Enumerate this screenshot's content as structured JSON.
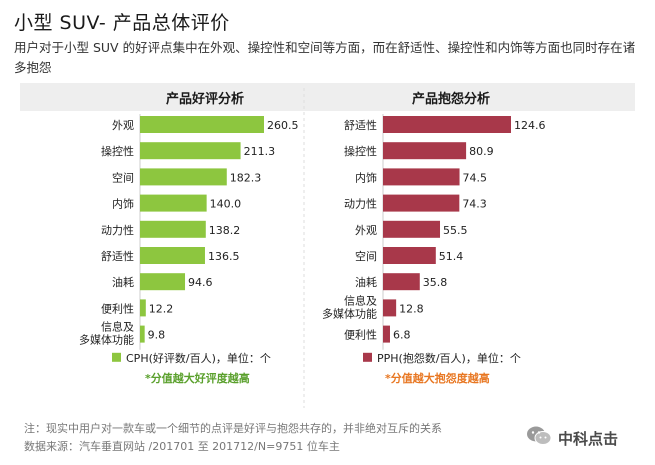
{
  "header": {
    "title": "小型 SUV- 产品总体评价",
    "subtitle": "用户对于小型 SUV 的好评点集中在外观、操控性和空间等方面，而在舒适性、操控性和内饰等方面也同时存在诸多抱怨"
  },
  "chart_data": [
    {
      "type": "bar",
      "orientation": "horizontal",
      "title": "产品好评分析",
      "categories": [
        "外观",
        "操控性",
        "空间",
        "内饰",
        "动力性",
        "舒适性",
        "油耗",
        "便利性",
        "信息及\n多媒体功能"
      ],
      "values": [
        260.5,
        211.3,
        182.3,
        140.0,
        138.2,
        136.5,
        94.6,
        12.2,
        9.8
      ],
      "value_labels": [
        "260.5",
        "211.3",
        "182.3",
        "140.0",
        "138.2",
        "136.5",
        "94.6",
        "12.2",
        "9.8"
      ],
      "color": "#8dc63f",
      "legend": "CPH(好评数/百人)，单位：个",
      "note": "*分值越大好评度越高",
      "note_color": "#5aa02c",
      "xlim": [
        0,
        290
      ],
      "grid": false
    },
    {
      "type": "bar",
      "orientation": "horizontal",
      "title": "产品抱怨分析",
      "categories": [
        "舒适性",
        "操控性",
        "内饰",
        "动力性",
        "外观",
        "空间",
        "油耗",
        "信息及\n多媒体功能",
        "便利性"
      ],
      "values": [
        124.6,
        80.9,
        74.5,
        74.3,
        55.5,
        51.4,
        35.8,
        12.8,
        6.8
      ],
      "value_labels": [
        "124.6",
        "80.9",
        "74.5",
        "74.3",
        "55.5",
        "51.4",
        "35.8",
        "12.8",
        "6.8"
      ],
      "color": "#a8384a",
      "legend": "PPH(抱怨数/百人)，单位：个",
      "note": "*分值越大抱怨度越高",
      "note_color": "#e87722",
      "xlim": [
        0,
        138
      ],
      "grid": false
    }
  ],
  "footnotes": {
    "note": "注：现实中用户对一款车或一个细节的点评是好评与抱怨共存的，并非绝对互斥的关系",
    "source": "数据来源：汽车垂直网站 /201701 至 201712/N=9751 位车主"
  },
  "branding": {
    "logo_icon": "wechat-icon",
    "logo_text": "中科点击"
  }
}
